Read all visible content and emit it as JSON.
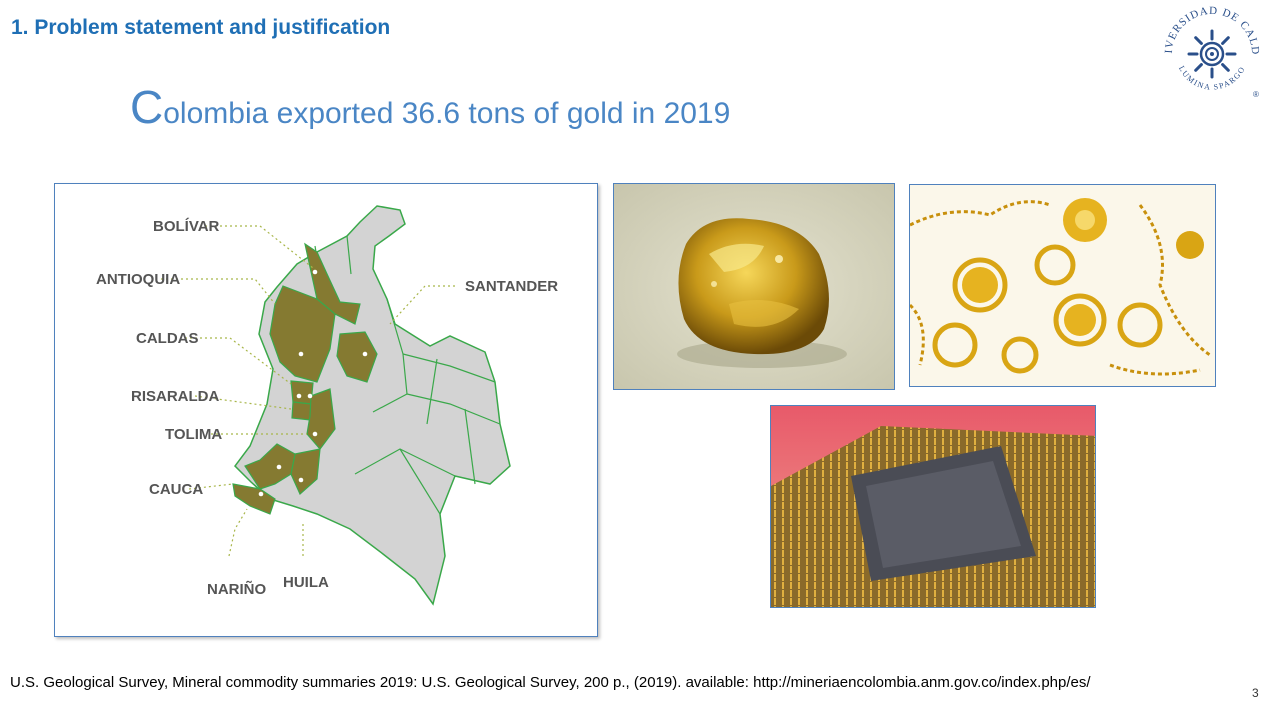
{
  "section_title": "1. Problem statement and justification",
  "main_title": {
    "initial": "C",
    "rest": "olombia exported 36.6 tons of gold in 2019"
  },
  "logo": {
    "text_top": "UNIVERSIDAD DE CALDAS",
    "text_bottom": "LUMINA SPARGO",
    "mark": "®"
  },
  "map": {
    "labels": [
      "BOLÍVAR",
      "ANTIOQUIA",
      "CALDAS",
      "RISARALDA",
      "TOLIMA",
      "CAUCA",
      "NARIÑO",
      "HUILA",
      "SANTANDER"
    ],
    "highlight_color": "#857a31",
    "base_color": "#d3d3d3",
    "border_color": "#3aa84a"
  },
  "images": {
    "nugget": "gold-nugget",
    "jewelry": "gold-jewelry",
    "cpu": "cpu-gold-pins"
  },
  "citation": "U.S. Geological Survey, Mineral commodity summaries 2019: U.S. Geological Survey, 200 p., (2019). available: http://mineriaencolombia.anm.gov.co/index.php/es/",
  "slide_number": "3"
}
